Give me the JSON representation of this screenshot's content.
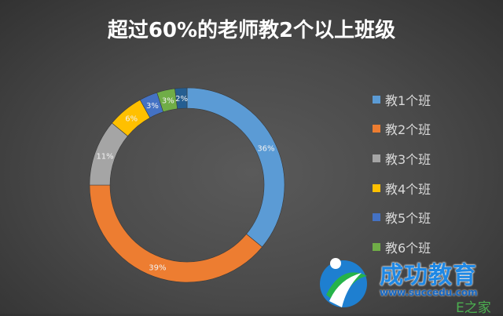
{
  "chart_data": {
    "type": "pie",
    "subtype": "doughnut",
    "title": "超过60%的老师教2个以上班级",
    "categories": [
      "教1个班",
      "教2个班",
      "教3个班",
      "教4个班",
      "教5个班",
      "教6个班",
      ""
    ],
    "values": [
      36,
      39,
      11,
      6,
      3,
      3,
      2
    ],
    "data_labels": [
      "36%",
      "39%",
      "11%",
      "6%",
      "3%",
      "3%",
      "2%"
    ],
    "colors": [
      "#5b9bd5",
      "#ed7d31",
      "#a5a5a5",
      "#ffc000",
      "#4472c4",
      "#70ad47",
      "#255e91"
    ],
    "legend_position": "right",
    "start_angle": "top, clockwise"
  },
  "watermark": {
    "logo_text": "成功教育",
    "url": "www.succedu.com",
    "secondary": "E之家"
  }
}
